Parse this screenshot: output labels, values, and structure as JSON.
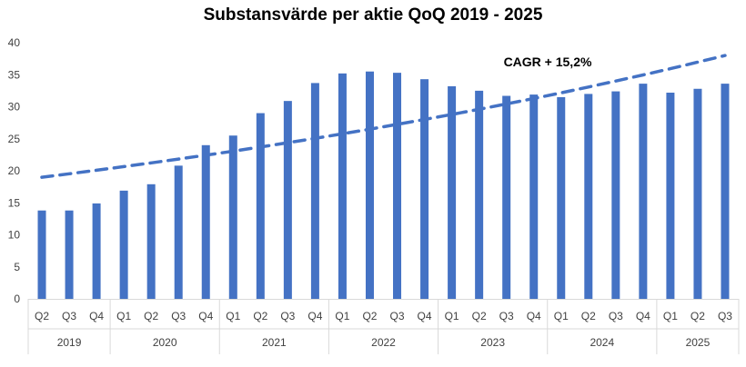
{
  "chart_data": {
    "type": "bar",
    "title": "Substansvärde per aktie QoQ 2019 - 2025",
    "xlabel": "",
    "ylabel": "",
    "ylim": [
      0,
      40
    ],
    "yticks": [
      0,
      5,
      10,
      15,
      20,
      25,
      30,
      35,
      40
    ],
    "grid": false,
    "legend": "none",
    "color": "#4472C4",
    "groups": [
      {
        "year": "2019",
        "quarters": [
          "Q2",
          "Q3",
          "Q4"
        ]
      },
      {
        "year": "2020",
        "quarters": [
          "Q1",
          "Q2",
          "Q3",
          "Q4"
        ]
      },
      {
        "year": "2021",
        "quarters": [
          "Q1",
          "Q2",
          "Q3",
          "Q4"
        ]
      },
      {
        "year": "2022",
        "quarters": [
          "Q1",
          "Q2",
          "Q3",
          "Q4"
        ]
      },
      {
        "year": "2023",
        "quarters": [
          "Q1",
          "Q2",
          "Q3",
          "Q4"
        ]
      },
      {
        "year": "2024",
        "quarters": [
          "Q1",
          "Q2",
          "Q3",
          "Q4"
        ]
      },
      {
        "year": "2025",
        "quarters": [
          "Q1",
          "Q2",
          "Q3"
        ]
      }
    ],
    "values": [
      13.8,
      13.8,
      14.9,
      16.9,
      17.9,
      20.8,
      24.0,
      25.5,
      29.0,
      30.9,
      33.7,
      35.2,
      35.5,
      35.3,
      34.3,
      33.2,
      32.5,
      31.7,
      31.9,
      31.5,
      32.0,
      32.4,
      33.6,
      32.2,
      32.8,
      33.6
    ],
    "trendline": {
      "type": "exponential",
      "start": 19.0,
      "end": 38.0,
      "style": "dashed"
    },
    "annotation": "CAGR + 15,2%"
  }
}
